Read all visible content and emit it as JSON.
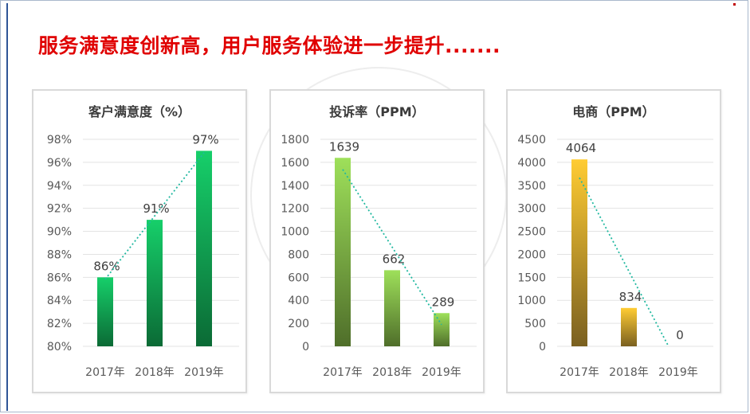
{
  "headline": "服务满意度创新高，用户服务体验进一步提升.......",
  "colors": {
    "headline": "#e00000",
    "trendline": "#21b8a0"
  },
  "chart_data": [
    {
      "type": "bar",
      "title": "客户满意度（%）",
      "categories": [
        "2017年",
        "2018年",
        "2019年"
      ],
      "values": [
        86,
        91,
        97
      ],
      "value_labels": [
        "86%",
        "91%",
        "97%"
      ],
      "ylim": [
        80,
        98
      ],
      "yticks": [
        80,
        82,
        84,
        86,
        88,
        90,
        92,
        94,
        96,
        98
      ],
      "ytick_labels": [
        "80%",
        "82%",
        "84%",
        "86%",
        "88%",
        "90%",
        "92%",
        "94%",
        "96%",
        "98%"
      ],
      "grid": true,
      "trendline": "linear",
      "bar_gradient": [
        "#16cf6a",
        "#0b6a35"
      ]
    },
    {
      "type": "bar",
      "title": "投诉率（PPM）",
      "categories": [
        "2017年",
        "2018年",
        "2019年"
      ],
      "values": [
        1639,
        662,
        289
      ],
      "value_labels": [
        "1639",
        "662",
        "289"
      ],
      "ylim": [
        0,
        1800
      ],
      "yticks": [
        0,
        200,
        400,
        600,
        800,
        1000,
        1200,
        1400,
        1600,
        1800
      ],
      "ytick_labels": [
        "0",
        "200",
        "400",
        "600",
        "800",
        "1000",
        "1200",
        "1400",
        "1600",
        "1800"
      ],
      "grid": true,
      "trendline": "linear",
      "bar_gradient": [
        "#9ee05a",
        "#4f6e2a"
      ]
    },
    {
      "type": "bar",
      "title": "电商（PPM）",
      "categories": [
        "2017年",
        "2018年",
        "2019年"
      ],
      "values": [
        4064,
        834,
        0
      ],
      "value_labels": [
        "4064",
        "834",
        "0"
      ],
      "ylim": [
        0,
        4500
      ],
      "yticks": [
        0,
        500,
        1000,
        1500,
        2000,
        2500,
        3000,
        3500,
        4000,
        4500
      ],
      "ytick_labels": [
        "0",
        "500",
        "1000",
        "1500",
        "2000",
        "2500",
        "3000",
        "3500",
        "4000",
        "4500"
      ],
      "grid": true,
      "trendline": "linear",
      "bar_gradient": [
        "#ffcc33",
        "#7a6020"
      ]
    }
  ]
}
